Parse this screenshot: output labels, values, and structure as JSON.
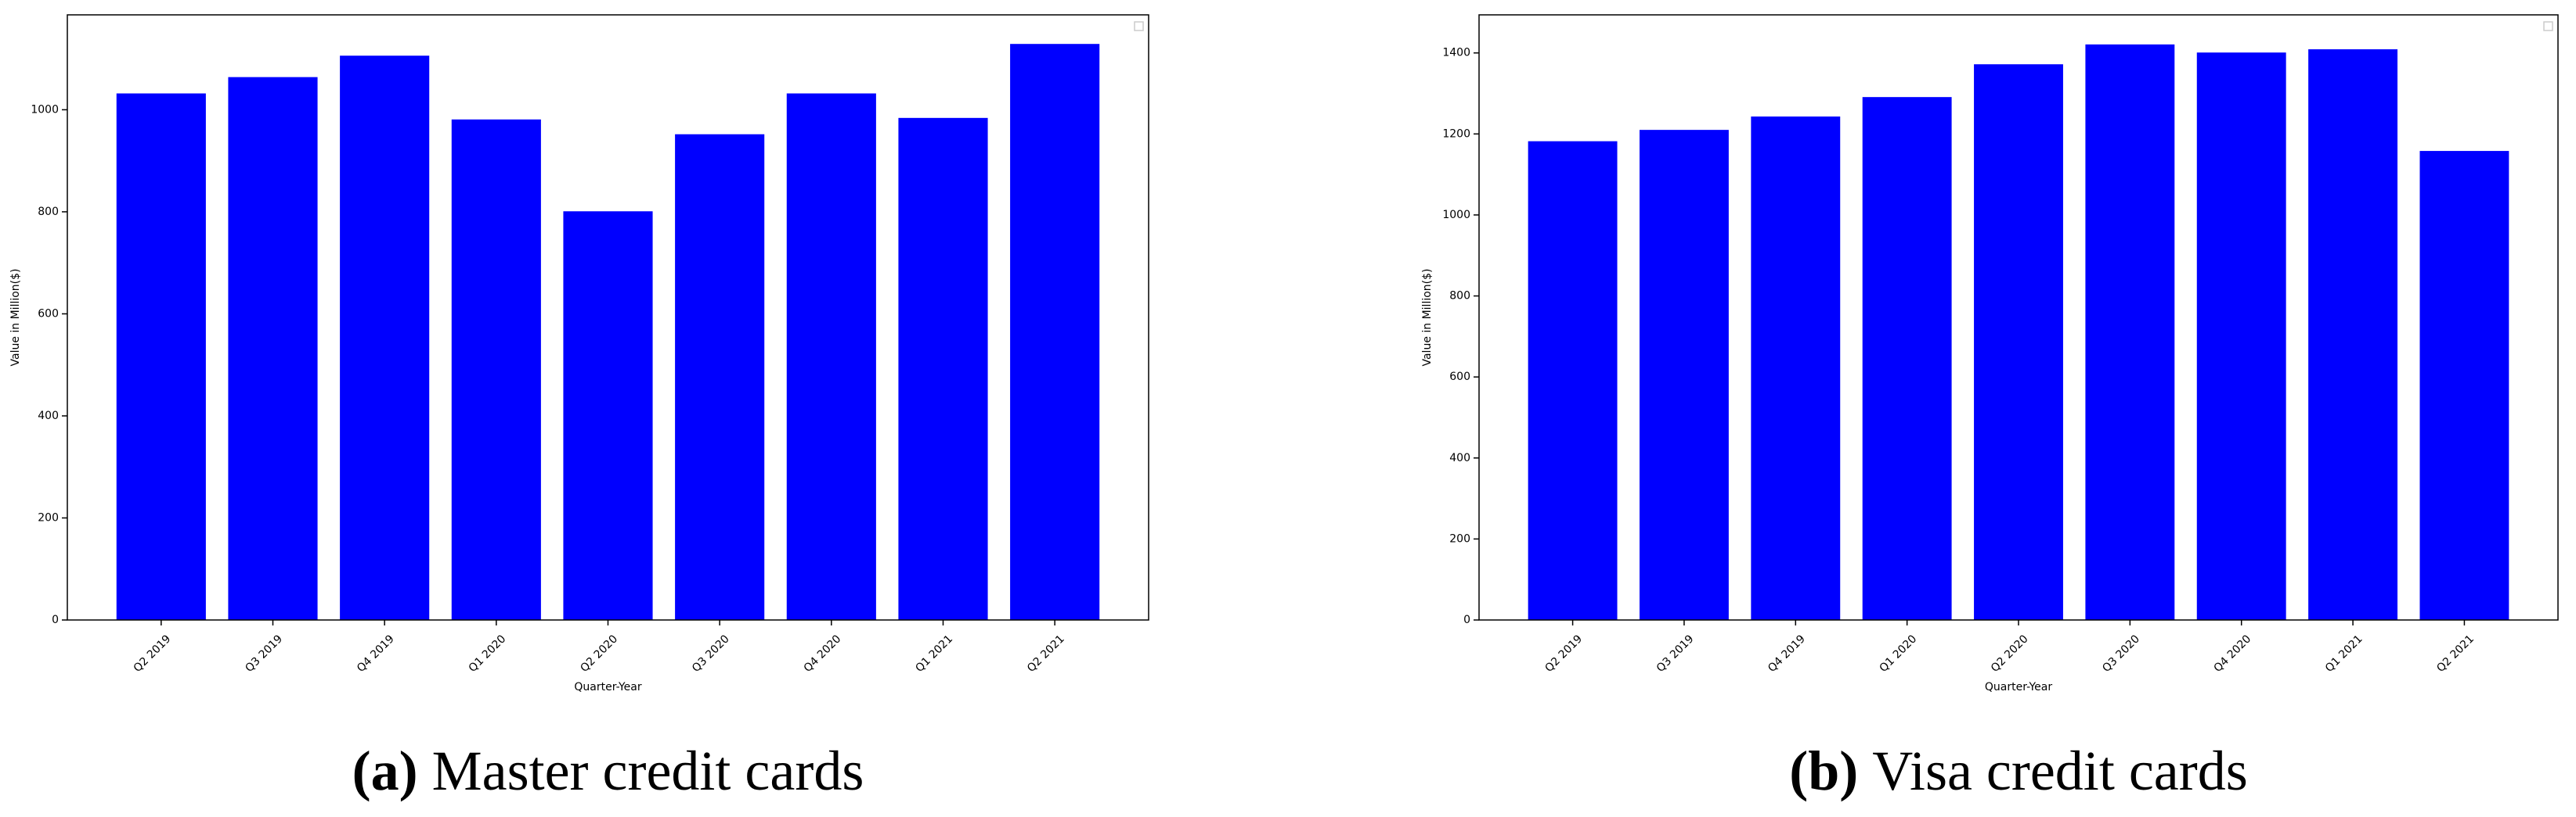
{
  "chart_data": [
    {
      "type": "bar",
      "caption": {
        "label": "(a)",
        "text": "Master credit cards"
      },
      "xlabel": "Quarter-Year",
      "ylabel": "Value in Million($)",
      "categories": [
        "Q2 2019",
        "Q3 2019",
        "Q4 2019",
        "Q1 2020",
        "Q2 2020",
        "Q3 2020",
        "Q4 2020",
        "Q1 2021",
        "Q2 2021"
      ],
      "values": [
        1032,
        1064,
        1106,
        981,
        801,
        952,
        1032,
        984,
        1129
      ],
      "color": "#0000ff",
      "ylim": [
        0,
        1186
      ],
      "yticks": [
        0,
        200,
        400,
        600,
        800,
        1000
      ]
    },
    {
      "type": "bar",
      "caption": {
        "label": "(b)",
        "text": "Visa credit cards"
      },
      "xlabel": "Quarter-Year",
      "ylabel": "Value in Million($)",
      "categories": [
        "Q2 2019",
        "Q3 2019",
        "Q4 2019",
        "Q1 2020",
        "Q2 2020",
        "Q3 2020",
        "Q4 2020",
        "Q1 2021",
        "Q2 2021"
      ],
      "values": [
        1182,
        1210,
        1243,
        1291,
        1372,
        1421,
        1401,
        1409,
        1158
      ],
      "color": "#0000ff",
      "ylim": [
        0,
        1494
      ],
      "yticks": [
        0,
        200,
        400,
        600,
        800,
        1000,
        1200,
        1400
      ]
    }
  ]
}
